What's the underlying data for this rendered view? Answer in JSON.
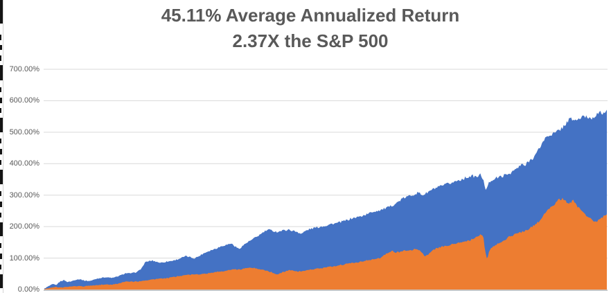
{
  "chart_data": {
    "type": "area",
    "title": "45.11% Average Annualized Return",
    "subtitle": "2.37X the S&P 500",
    "xlabel": "",
    "ylabel": "",
    "ylim": [
      0,
      700
    ],
    "grid": "horizontal",
    "legend": "none",
    "y_axis": {
      "tick_labels": [
        "700.00%",
        "600.00%",
        "500.00%",
        "400.00%",
        "300.00%",
        "200.00%",
        "100.00%",
        "0.00%"
      ],
      "tick_values": [
        700,
        600,
        500,
        400,
        300,
        200,
        100,
        0
      ]
    },
    "series": [
      {
        "name": "blue-area-series",
        "color": "#4472C4",
        "unit": "percent-cumulative-return",
        "points": [
          [
            0.0,
            3
          ],
          [
            0.007,
            10
          ],
          [
            0.015,
            17
          ],
          [
            0.021,
            14
          ],
          [
            0.028,
            26
          ],
          [
            0.035,
            30
          ],
          [
            0.041,
            24
          ],
          [
            0.048,
            26
          ],
          [
            0.055,
            31
          ],
          [
            0.063,
            33
          ],
          [
            0.07,
            29
          ],
          [
            0.078,
            27
          ],
          [
            0.085,
            29
          ],
          [
            0.092,
            34
          ],
          [
            0.1,
            37
          ],
          [
            0.107,
            39
          ],
          [
            0.115,
            38
          ],
          [
            0.122,
            37
          ],
          [
            0.129,
            41
          ],
          [
            0.137,
            46
          ],
          [
            0.144,
            52
          ],
          [
            0.152,
            51
          ],
          [
            0.159,
            53
          ],
          [
            0.166,
            57
          ],
          [
            0.173,
            68
          ],
          [
            0.179,
            86
          ],
          [
            0.185,
            90
          ],
          [
            0.192,
            92
          ],
          [
            0.2,
            88
          ],
          [
            0.207,
            85
          ],
          [
            0.215,
            88
          ],
          [
            0.222,
            90
          ],
          [
            0.229,
            92
          ],
          [
            0.237,
            96
          ],
          [
            0.244,
            101
          ],
          [
            0.252,
            106
          ],
          [
            0.259,
            103
          ],
          [
            0.266,
            99
          ],
          [
            0.274,
            105
          ],
          [
            0.281,
            113
          ],
          [
            0.289,
            120
          ],
          [
            0.296,
            125
          ],
          [
            0.303,
            129
          ],
          [
            0.311,
            135
          ],
          [
            0.318,
            140
          ],
          [
            0.326,
            143
          ],
          [
            0.332,
            147
          ],
          [
            0.339,
            137
          ],
          [
            0.346,
            129
          ],
          [
            0.354,
            141
          ],
          [
            0.361,
            150
          ],
          [
            0.369,
            158
          ],
          [
            0.376,
            166
          ],
          [
            0.383,
            174
          ],
          [
            0.391,
            184
          ],
          [
            0.398,
            190
          ],
          [
            0.406,
            187
          ],
          [
            0.413,
            183
          ],
          [
            0.42,
            186
          ],
          [
            0.428,
            189
          ],
          [
            0.435,
            190
          ],
          [
            0.443,
            186
          ],
          [
            0.45,
            183
          ],
          [
            0.457,
            177
          ],
          [
            0.465,
            187
          ],
          [
            0.472,
            192
          ],
          [
            0.48,
            196
          ],
          [
            0.487,
            198
          ],
          [
            0.494,
            201
          ],
          [
            0.502,
            204
          ],
          [
            0.509,
            208
          ],
          [
            0.517,
            210
          ],
          [
            0.524,
            213
          ],
          [
            0.531,
            217
          ],
          [
            0.539,
            221
          ],
          [
            0.546,
            226
          ],
          [
            0.554,
            229
          ],
          [
            0.561,
            232
          ],
          [
            0.568,
            236
          ],
          [
            0.576,
            241
          ],
          [
            0.583,
            247
          ],
          [
            0.591,
            250
          ],
          [
            0.598,
            253
          ],
          [
            0.605,
            257
          ],
          [
            0.613,
            262
          ],
          [
            0.62,
            269
          ],
          [
            0.628,
            277
          ],
          [
            0.635,
            287
          ],
          [
            0.642,
            293
          ],
          [
            0.65,
            298
          ],
          [
            0.657,
            303
          ],
          [
            0.665,
            308
          ],
          [
            0.672,
            300
          ],
          [
            0.679,
            306
          ],
          [
            0.687,
            315
          ],
          [
            0.694,
            321
          ],
          [
            0.702,
            326
          ],
          [
            0.709,
            330
          ],
          [
            0.716,
            335
          ],
          [
            0.724,
            339
          ],
          [
            0.731,
            344
          ],
          [
            0.739,
            349
          ],
          [
            0.746,
            353
          ],
          [
            0.753,
            358
          ],
          [
            0.761,
            361
          ],
          [
            0.768,
            357
          ],
          [
            0.776,
            366
          ],
          [
            0.781,
            346
          ],
          [
            0.784,
            311
          ],
          [
            0.788,
            331
          ],
          [
            0.793,
            346
          ],
          [
            0.8,
            352
          ],
          [
            0.808,
            357
          ],
          [
            0.815,
            361
          ],
          [
            0.822,
            365
          ],
          [
            0.83,
            372
          ],
          [
            0.837,
            381
          ],
          [
            0.845,
            391
          ],
          [
            0.85,
            399
          ],
          [
            0.855,
            391
          ],
          [
            0.859,
            405
          ],
          [
            0.867,
            416
          ],
          [
            0.874,
            430
          ],
          [
            0.882,
            455
          ],
          [
            0.888,
            475
          ],
          [
            0.894,
            487
          ],
          [
            0.899,
            492
          ],
          [
            0.904,
            495
          ],
          [
            0.909,
            498
          ],
          [
            0.914,
            505
          ],
          [
            0.919,
            512
          ],
          [
            0.924,
            520
          ],
          [
            0.928,
            530
          ],
          [
            0.933,
            540
          ],
          [
            0.938,
            542
          ],
          [
            0.943,
            537
          ],
          [
            0.948,
            540
          ],
          [
            0.953,
            545
          ],
          [
            0.958,
            548
          ],
          [
            0.963,
            550
          ],
          [
            0.968,
            546
          ],
          [
            0.973,
            545
          ],
          [
            0.978,
            552
          ],
          [
            0.983,
            558
          ],
          [
            0.988,
            561
          ],
          [
            0.994,
            562
          ],
          [
            1.0,
            565
          ]
        ]
      },
      {
        "name": "orange-area-series",
        "color": "#ED7D31",
        "unit": "percent-cumulative-return",
        "points": [
          [
            0.0,
            2
          ],
          [
            0.01,
            5
          ],
          [
            0.02,
            8
          ],
          [
            0.03,
            6
          ],
          [
            0.039,
            8
          ],
          [
            0.049,
            10
          ],
          [
            0.059,
            11
          ],
          [
            0.069,
            10
          ],
          [
            0.079,
            12
          ],
          [
            0.089,
            13
          ],
          [
            0.099,
            15
          ],
          [
            0.109,
            16
          ],
          [
            0.118,
            15
          ],
          [
            0.128,
            18
          ],
          [
            0.138,
            22
          ],
          [
            0.148,
            26
          ],
          [
            0.158,
            25
          ],
          [
            0.168,
            26
          ],
          [
            0.178,
            28
          ],
          [
            0.187,
            31
          ],
          [
            0.197,
            33
          ],
          [
            0.207,
            35
          ],
          [
            0.217,
            36
          ],
          [
            0.227,
            39
          ],
          [
            0.237,
            42
          ],
          [
            0.247,
            45
          ],
          [
            0.256,
            46
          ],
          [
            0.266,
            48
          ],
          [
            0.276,
            49
          ],
          [
            0.286,
            51
          ],
          [
            0.296,
            53
          ],
          [
            0.306,
            56
          ],
          [
            0.316,
            58
          ],
          [
            0.326,
            61
          ],
          [
            0.335,
            64
          ],
          [
            0.345,
            63
          ],
          [
            0.355,
            66
          ],
          [
            0.365,
            69
          ],
          [
            0.375,
            68
          ],
          [
            0.385,
            64
          ],
          [
            0.395,
            60
          ],
          [
            0.404,
            55
          ],
          [
            0.413,
            48
          ],
          [
            0.422,
            54
          ],
          [
            0.432,
            60
          ],
          [
            0.441,
            62
          ],
          [
            0.451,
            57
          ],
          [
            0.461,
            60
          ],
          [
            0.471,
            63
          ],
          [
            0.481,
            65
          ],
          [
            0.491,
            67
          ],
          [
            0.501,
            70
          ],
          [
            0.51,
            73
          ],
          [
            0.52,
            76
          ],
          [
            0.53,
            79
          ],
          [
            0.54,
            82
          ],
          [
            0.55,
            85
          ],
          [
            0.56,
            88
          ],
          [
            0.57,
            92
          ],
          [
            0.58,
            94
          ],
          [
            0.589,
            96
          ],
          [
            0.598,
            101
          ],
          [
            0.605,
            110
          ],
          [
            0.613,
            118
          ],
          [
            0.619,
            122
          ],
          [
            0.625,
            118
          ],
          [
            0.633,
            120
          ],
          [
            0.64,
            125
          ],
          [
            0.647,
            122
          ],
          [
            0.655,
            127
          ],
          [
            0.662,
            131
          ],
          [
            0.67,
            120
          ],
          [
            0.676,
            106
          ],
          [
            0.682,
            112
          ],
          [
            0.689,
            124
          ],
          [
            0.697,
            131
          ],
          [
            0.704,
            134
          ],
          [
            0.711,
            137
          ],
          [
            0.719,
            141
          ],
          [
            0.726,
            144
          ],
          [
            0.734,
            147
          ],
          [
            0.741,
            150
          ],
          [
            0.748,
            152
          ],
          [
            0.756,
            156
          ],
          [
            0.763,
            162
          ],
          [
            0.771,
            170
          ],
          [
            0.777,
            175
          ],
          [
            0.781,
            162
          ],
          [
            0.784,
            118
          ],
          [
            0.787,
            95
          ],
          [
            0.79,
            116
          ],
          [
            0.794,
            130
          ],
          [
            0.799,
            139
          ],
          [
            0.805,
            145
          ],
          [
            0.813,
            151
          ],
          [
            0.82,
            160
          ],
          [
            0.827,
            168
          ],
          [
            0.835,
            174
          ],
          [
            0.842,
            179
          ],
          [
            0.85,
            183
          ],
          [
            0.857,
            189
          ],
          [
            0.864,
            196
          ],
          [
            0.872,
            206
          ],
          [
            0.879,
            216
          ],
          [
            0.885,
            230
          ],
          [
            0.891,
            247
          ],
          [
            0.896,
            257
          ],
          [
            0.901,
            262
          ],
          [
            0.906,
            270
          ],
          [
            0.911,
            280
          ],
          [
            0.916,
            286
          ],
          [
            0.921,
            290
          ],
          [
            0.926,
            281
          ],
          [
            0.931,
            271
          ],
          [
            0.936,
            278
          ],
          [
            0.941,
            283
          ],
          [
            0.946,
            268
          ],
          [
            0.951,
            257
          ],
          [
            0.956,
            247
          ],
          [
            0.961,
            240
          ],
          [
            0.965,
            233
          ],
          [
            0.97,
            226
          ],
          [
            0.975,
            219
          ],
          [
            0.98,
            212
          ],
          [
            0.984,
            221
          ],
          [
            0.988,
            227
          ],
          [
            0.994,
            232
          ],
          [
            1.0,
            236
          ]
        ]
      }
    ],
    "colors": {
      "title_text": "#595959",
      "axis_text": "#595959",
      "gridline": "#D9D9D9",
      "axis_line": "#C6C6C6",
      "background": "#FFFFFF"
    }
  },
  "decor": {
    "left_edge_marks": [
      {
        "y": 0,
        "h": 34,
        "w": 4
      },
      {
        "y": 50,
        "h": 8,
        "w": 2
      },
      {
        "y": 65,
        "h": 7,
        "w": 3
      },
      {
        "y": 80,
        "h": 8,
        "w": 2
      },
      {
        "y": 94,
        "h": 22,
        "w": 4
      },
      {
        "y": 126,
        "h": 7,
        "w": 2
      },
      {
        "y": 141,
        "h": 8,
        "w": 3
      },
      {
        "y": 156,
        "h": 7,
        "w": 2
      },
      {
        "y": 170,
        "h": 21,
        "w": 4
      },
      {
        "y": 200,
        "h": 7,
        "w": 2
      },
      {
        "y": 215,
        "h": 8,
        "w": 3
      },
      {
        "y": 231,
        "h": 7,
        "w": 2
      },
      {
        "y": 245,
        "h": 21,
        "w": 4
      },
      {
        "y": 276,
        "h": 7,
        "w": 2
      },
      {
        "y": 291,
        "h": 8,
        "w": 3
      },
      {
        "y": 307,
        "h": 7,
        "w": 2
      },
      {
        "y": 321,
        "h": 20,
        "w": 4
      },
      {
        "y": 351,
        "h": 7,
        "w": 2
      },
      {
        "y": 366,
        "h": 8,
        "w": 3
      },
      {
        "y": 382,
        "h": 7,
        "w": 2
      },
      {
        "y": 396,
        "h": 20,
        "w": 4
      }
    ]
  }
}
